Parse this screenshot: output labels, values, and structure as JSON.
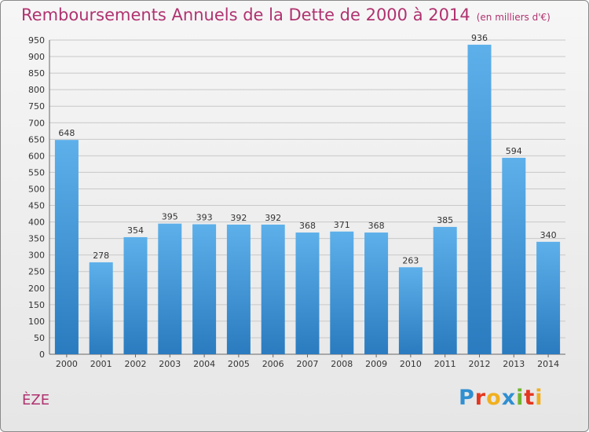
{
  "header": {
    "title": "Remboursements Annuels de la Dette de 2000 à 2014",
    "unit": "(en milliers d'€)"
  },
  "footer": {
    "city": "ÈZE",
    "brand_letters": [
      "P",
      "r",
      "o",
      "x",
      "i",
      "t",
      "i"
    ],
    "brand_colors": [
      "#2f8fd1",
      "#e4371f",
      "#f0b020",
      "#2f8fd1",
      "#70b52d",
      "#e4371f",
      "#f0b020"
    ]
  },
  "colors": {
    "bar_top": "#5db0ea",
    "bar_bottom": "#2a7bbf",
    "grid": "#c8c8c8",
    "text": "#333333",
    "title": "#b0326f"
  },
  "chart_data": {
    "type": "bar",
    "categories": [
      "2000",
      "2001",
      "2002",
      "2003",
      "2004",
      "2005",
      "2006",
      "2007",
      "2008",
      "2009",
      "2010",
      "2011",
      "2012",
      "2013",
      "2014"
    ],
    "values": [
      648,
      278,
      354,
      395,
      393,
      392,
      392,
      368,
      371,
      368,
      263,
      385,
      936,
      594,
      340
    ],
    "ylim": [
      0,
      950
    ],
    "ytick_step": 50,
    "grid": true
  }
}
